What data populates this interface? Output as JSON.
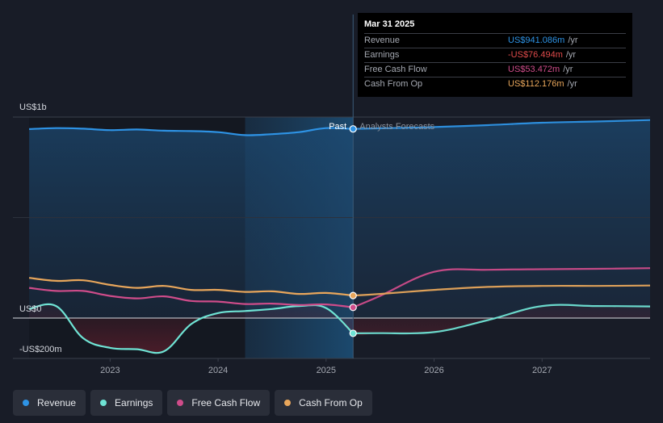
{
  "chart_data": {
    "type": "line",
    "xlim": [
      2022.1,
      2028.0
    ],
    "ylim": [
      -200,
      1000
    ],
    "y_tick_labels": [
      {
        "value": 1000,
        "label": "US$1b"
      },
      {
        "value": 0,
        "label": "US$0"
      },
      {
        "value": -200,
        "label": "-US$200m"
      }
    ],
    "x_ticks": [
      {
        "value": 2023,
        "label": "2023"
      },
      {
        "value": 2024,
        "label": "2024"
      },
      {
        "value": 2025,
        "label": "2025"
      },
      {
        "value": 2026,
        "label": "2026"
      },
      {
        "value": 2027,
        "label": "2027"
      }
    ],
    "past_label": "Past",
    "forecast_label": "Analysts Forecasts",
    "past_shade_start": 2024.25,
    "divider_x": 2025.25,
    "series": [
      {
        "name": "Revenue",
        "color": "#2e93e5",
        "points": [
          [
            2022.25,
            940
          ],
          [
            2022.5,
            945
          ],
          [
            2022.75,
            942
          ],
          [
            2023.0,
            935
          ],
          [
            2023.25,
            938
          ],
          [
            2023.5,
            932
          ],
          [
            2023.75,
            930
          ],
          [
            2024.0,
            925
          ],
          [
            2024.25,
            910
          ],
          [
            2024.5,
            915
          ],
          [
            2024.75,
            925
          ],
          [
            2025.0,
            945
          ],
          [
            2025.25,
            941
          ]
        ],
        "forecast": [
          [
            2025.25,
            941
          ],
          [
            2025.5,
            944
          ],
          [
            2026.0,
            950
          ],
          [
            2026.5,
            960
          ],
          [
            2027.0,
            972
          ],
          [
            2027.5,
            978
          ],
          [
            2028.0,
            985
          ]
        ]
      },
      {
        "name": "Earnings",
        "color": "#6fe3d4",
        "points": [
          [
            2022.25,
            45
          ],
          [
            2022.5,
            60
          ],
          [
            2022.75,
            -100
          ],
          [
            2023.0,
            -148
          ],
          [
            2023.25,
            -155
          ],
          [
            2023.5,
            -165
          ],
          [
            2023.75,
            -30
          ],
          [
            2024.0,
            25
          ],
          [
            2024.25,
            35
          ],
          [
            2024.5,
            45
          ],
          [
            2024.75,
            60
          ],
          [
            2025.0,
            50
          ],
          [
            2025.25,
            -76
          ]
        ],
        "forecast": [
          [
            2025.25,
            -76
          ],
          [
            2025.5,
            -75
          ],
          [
            2026.0,
            -70
          ],
          [
            2026.5,
            -10
          ],
          [
            2027.0,
            60
          ],
          [
            2027.5,
            60
          ],
          [
            2028.0,
            58
          ]
        ]
      },
      {
        "name": "Free Cash Flow",
        "color": "#cf4c8a",
        "points": [
          [
            2022.25,
            150
          ],
          [
            2022.5,
            135
          ],
          [
            2022.75,
            135
          ],
          [
            2023.0,
            110
          ],
          [
            2023.25,
            98
          ],
          [
            2023.5,
            108
          ],
          [
            2023.75,
            85
          ],
          [
            2024.0,
            82
          ],
          [
            2024.25,
            70
          ],
          [
            2024.5,
            72
          ],
          [
            2024.75,
            65
          ],
          [
            2025.0,
            68
          ],
          [
            2025.25,
            53
          ]
        ],
        "forecast": [
          [
            2025.25,
            53
          ],
          [
            2025.5,
            110
          ],
          [
            2026.0,
            230
          ],
          [
            2026.5,
            240
          ],
          [
            2027.0,
            243
          ],
          [
            2027.5,
            245
          ],
          [
            2028.0,
            248
          ]
        ]
      },
      {
        "name": "Cash From Op",
        "color": "#e8a65b",
        "points": [
          [
            2022.25,
            200
          ],
          [
            2022.5,
            185
          ],
          [
            2022.75,
            188
          ],
          [
            2023.0,
            165
          ],
          [
            2023.25,
            150
          ],
          [
            2023.5,
            160
          ],
          [
            2023.75,
            140
          ],
          [
            2024.0,
            140
          ],
          [
            2024.25,
            130
          ],
          [
            2024.5,
            133
          ],
          [
            2024.75,
            120
          ],
          [
            2025.0,
            125
          ],
          [
            2025.25,
            112
          ]
        ],
        "forecast": [
          [
            2025.25,
            112
          ],
          [
            2025.5,
            120
          ],
          [
            2026.0,
            140
          ],
          [
            2026.5,
            155
          ],
          [
            2027.0,
            160
          ],
          [
            2027.5,
            160
          ],
          [
            2028.0,
            162
          ]
        ]
      }
    ]
  },
  "tooltip": {
    "date": "Mar 31 2025",
    "rows": [
      {
        "label": "Revenue",
        "value": "US$941.086m",
        "unit": "/yr",
        "color": "#2e93e5"
      },
      {
        "label": "Earnings",
        "value": "-US$76.494m",
        "unit": "/yr",
        "color": "#e04b4b"
      },
      {
        "label": "Free Cash Flow",
        "value": "US$53.472m",
        "unit": "/yr",
        "color": "#cf4c8a"
      },
      {
        "label": "Cash From Op",
        "value": "US$112.176m",
        "unit": "/yr",
        "color": "#e8a65b"
      }
    ]
  },
  "legend": [
    {
      "label": "Revenue",
      "color": "#2e93e5"
    },
    {
      "label": "Earnings",
      "color": "#6fe3d4"
    },
    {
      "label": "Free Cash Flow",
      "color": "#cf4c8a"
    },
    {
      "label": "Cash From Op",
      "color": "#e8a65b"
    }
  ]
}
